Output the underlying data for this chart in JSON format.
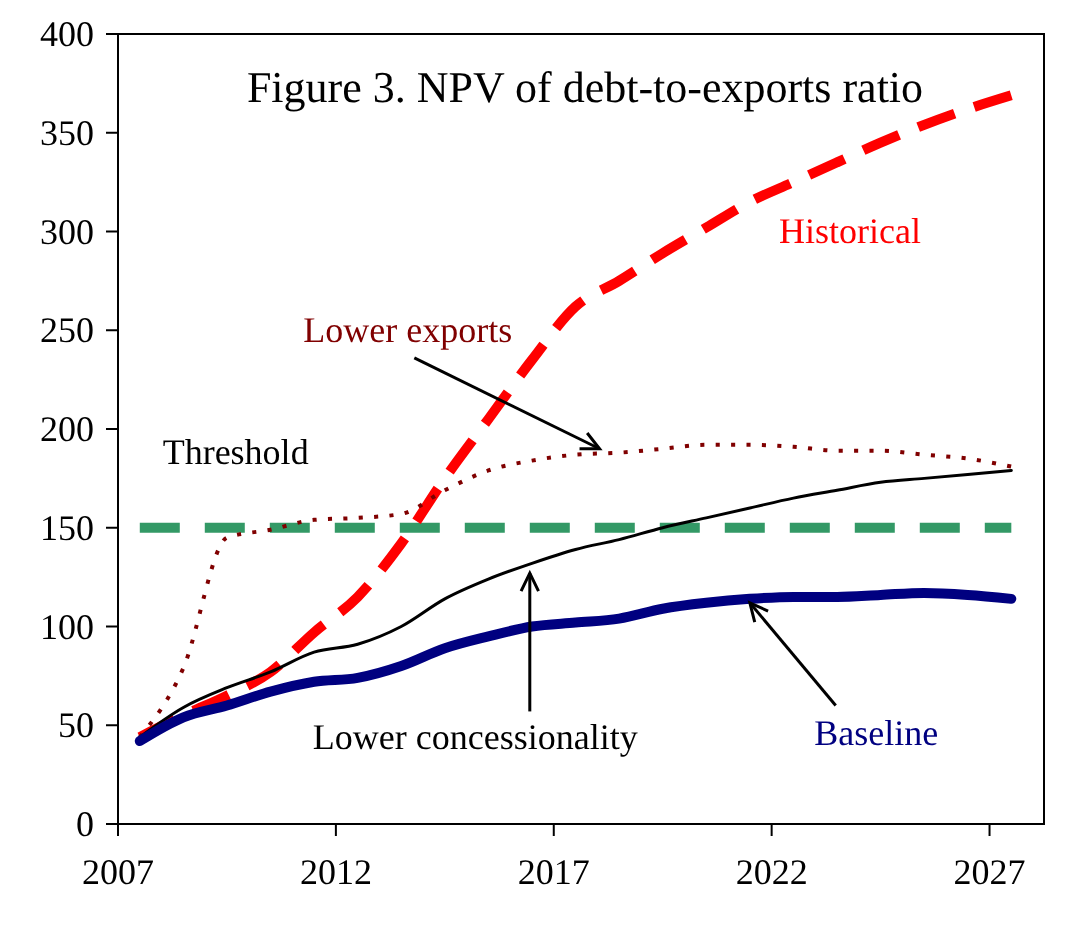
{
  "chart_data": {
    "type": "line",
    "title": "Figure 3. NPV of debt-to-exports ratio",
    "x": [
      2007,
      2008,
      2009,
      2010,
      2011,
      2012,
      2013,
      2014,
      2015,
      2016,
      2017,
      2018,
      2019,
      2020,
      2021,
      2022,
      2023,
      2024,
      2025,
      2026,
      2027
    ],
    "series": [
      {
        "name": "Historical",
        "color": "#ff0000",
        "line_style": "dashed",
        "values": [
          44,
          55,
          65,
          77,
          97,
          115,
          142,
          175,
          205,
          235,
          262,
          275,
          289,
          302,
          315,
          325,
          335,
          345,
          354,
          362,
          369
        ]
      },
      {
        "name": "Lower exports",
        "color": "#800000",
        "line_style": "dotted",
        "values": [
          44,
          79,
          145,
          149,
          154,
          155,
          157,
          169,
          179,
          184,
          187,
          188,
          190,
          192,
          192,
          191,
          189,
          189,
          187,
          185,
          181
        ]
      },
      {
        "name": "Lower concessionality",
        "color": "#000000",
        "line_style": "solid",
        "values": [
          44,
          59,
          69,
          77,
          87,
          91,
          100,
          114,
          124,
          132,
          139,
          144,
          150,
          155,
          160,
          165,
          169,
          173,
          175,
          177,
          179
        ]
      },
      {
        "name": "Baseline",
        "color": "#000080",
        "line_style": "solid",
        "values": [
          42,
          54,
          60,
          67,
          72,
          74,
          80,
          89,
          95,
          100,
          102,
          104,
          109,
          112,
          114,
          115,
          115,
          116,
          117,
          116,
          114
        ]
      }
    ],
    "ref_lines": [
      {
        "axis": "y",
        "value": 150,
        "label": "Threshold",
        "color": "#339966",
        "line_style": "dashed"
      }
    ],
    "xlim": [
      2006.5,
      2027.75
    ],
    "xticks": [
      {
        "value": 2006.5,
        "label": "2007"
      },
      {
        "value": 2011.5,
        "label": "2012"
      },
      {
        "value": 2016.5,
        "label": "2017"
      },
      {
        "value": 2021.5,
        "label": "2022"
      },
      {
        "value": 2026.5,
        "label": "2027"
      }
    ],
    "ylim": [
      0,
      400
    ],
    "yticks": [
      0,
      50,
      100,
      150,
      200,
      250,
      300,
      350,
      400
    ],
    "grid": false,
    "marker": "none"
  }
}
